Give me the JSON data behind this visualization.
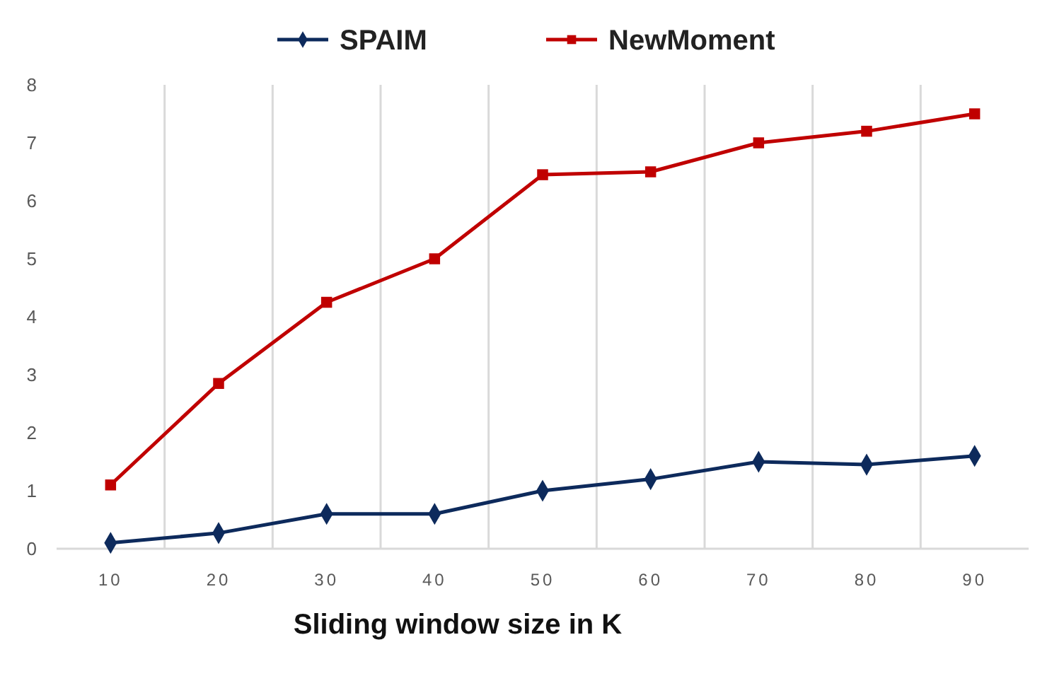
{
  "chart_data": {
    "type": "line",
    "xlabel": "Sliding window size in K",
    "categories": [
      "10",
      "20",
      "30",
      "40",
      "50",
      "60",
      "70",
      "80",
      "90"
    ],
    "series": [
      {
        "name": "SPAIM",
        "color": "#0d2a5c",
        "marker": "diamond",
        "values": [
          0.1,
          0.27,
          0.6,
          0.6,
          1.0,
          1.2,
          1.5,
          1.45,
          1.6
        ]
      },
      {
        "name": "NewMoment",
        "color": "#c00000",
        "marker": "square",
        "values": [
          1.1,
          2.85,
          4.25,
          5.0,
          6.45,
          6.5,
          7.0,
          7.2,
          7.5
        ]
      }
    ],
    "ylim": [
      0,
      8
    ],
    "yticks": [
      0,
      1,
      2,
      3,
      4,
      5,
      6,
      7,
      8
    ],
    "grid": "x",
    "legend": "top",
    "line_style": "solid"
  }
}
